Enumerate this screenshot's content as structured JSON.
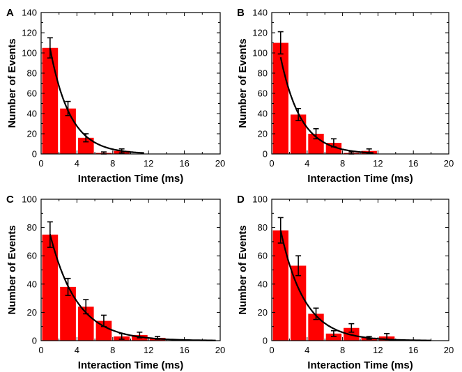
{
  "chart_data": [
    {
      "panel": "A",
      "type": "bar",
      "xlabel": "Interaction Time (ms)",
      "ylabel": "Number of Events",
      "xlim": [
        0,
        20
      ],
      "ylim": [
        0,
        140
      ],
      "xticks": [
        0,
        4,
        8,
        12,
        16,
        20
      ],
      "yticks": [
        0,
        20,
        40,
        60,
        80,
        100,
        120,
        140
      ],
      "bar_color": "#ff0000",
      "x": [
        1,
        3,
        5,
        7,
        9,
        11,
        13,
        15,
        17,
        19
      ],
      "values": [
        105,
        45,
        16,
        1,
        3,
        0,
        0,
        0,
        0,
        0
      ],
      "errors": [
        10,
        7,
        4,
        1,
        2,
        0,
        0,
        0,
        0,
        0
      ],
      "fit": {
        "type": "exponential",
        "A": 163,
        "tau": 2.25,
        "x_end": 11.5
      }
    },
    {
      "panel": "B",
      "type": "bar",
      "xlabel": "Interaction Time (ms)",
      "ylabel": "Number of Events",
      "xlim": [
        0,
        20
      ],
      "ylim": [
        0,
        140
      ],
      "xticks": [
        0,
        4,
        8,
        12,
        16,
        20
      ],
      "yticks": [
        0,
        20,
        40,
        60,
        80,
        100,
        120,
        140
      ],
      "bar_color": "#ff0000",
      "x": [
        1,
        3,
        5,
        7,
        9,
        11,
        13,
        15,
        17,
        19
      ],
      "values": [
        110,
        39,
        20,
        11,
        1,
        3,
        0,
        0,
        0,
        0
      ],
      "errors": [
        11,
        6,
        5,
        4,
        1,
        2,
        0,
        0,
        0,
        0
      ],
      "fit": {
        "type": "exponential",
        "A": 148,
        "tau": 2.3,
        "x_end": 11.5
      }
    },
    {
      "panel": "C",
      "type": "bar",
      "xlabel": "Interaction Time (ms)",
      "ylabel": "Number of Events",
      "xlim": [
        0,
        20
      ],
      "ylim": [
        0,
        100
      ],
      "xticks": [
        0,
        4,
        8,
        12,
        16,
        20
      ],
      "yticks": [
        0,
        20,
        40,
        60,
        80,
        100
      ],
      "bar_color": "#ff0000",
      "x": [
        1,
        3,
        5,
        7,
        9,
        11,
        13,
        15,
        17,
        19
      ],
      "values": [
        75,
        38,
        24,
        14,
        3,
        4,
        2,
        0,
        0,
        0
      ],
      "errors": [
        9,
        6,
        5,
        4,
        2,
        2,
        1,
        0,
        0,
        0
      ],
      "fit": {
        "type": "exponential",
        "A": 105,
        "tau": 3.0,
        "x_end": 19.5
      }
    },
    {
      "panel": "D",
      "type": "bar",
      "xlabel": "Interaction Time (ms)",
      "ylabel": "Number of Events",
      "xlim": [
        0,
        20
      ],
      "ylim": [
        0,
        100
      ],
      "xticks": [
        0,
        4,
        8,
        12,
        16,
        20
      ],
      "yticks": [
        0,
        20,
        40,
        60,
        80,
        100
      ],
      "bar_color": "#ff0000",
      "x": [
        1,
        3,
        5,
        7,
        9,
        11,
        13,
        15,
        17,
        19
      ],
      "values": [
        78,
        53,
        19,
        5,
        9,
        2,
        3,
        0,
        0,
        0
      ],
      "errors": [
        9,
        7,
        4,
        2,
        3,
        1,
        2,
        0,
        0,
        0
      ],
      "fit": {
        "type": "exponential",
        "A": 113,
        "tau": 2.7,
        "x_end": 18
      }
    }
  ]
}
